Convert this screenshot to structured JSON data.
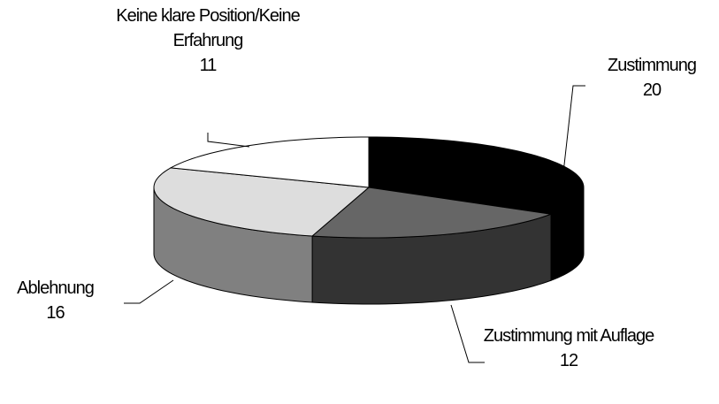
{
  "chart_data": {
    "type": "pie",
    "categories": [
      "Zustimmung",
      "Zustimmung mit Auflage",
      "Ablehnung",
      "Keine klare Position/Keine Erfahrung"
    ],
    "values": [
      20,
      12,
      16,
      11
    ],
    "colors": [
      "#000000",
      "#666666",
      "#dddddd",
      "#ffffff"
    ],
    "side_colors": [
      "#000000",
      "#333333",
      "#808080",
      "#bbbbbb"
    ]
  }
}
